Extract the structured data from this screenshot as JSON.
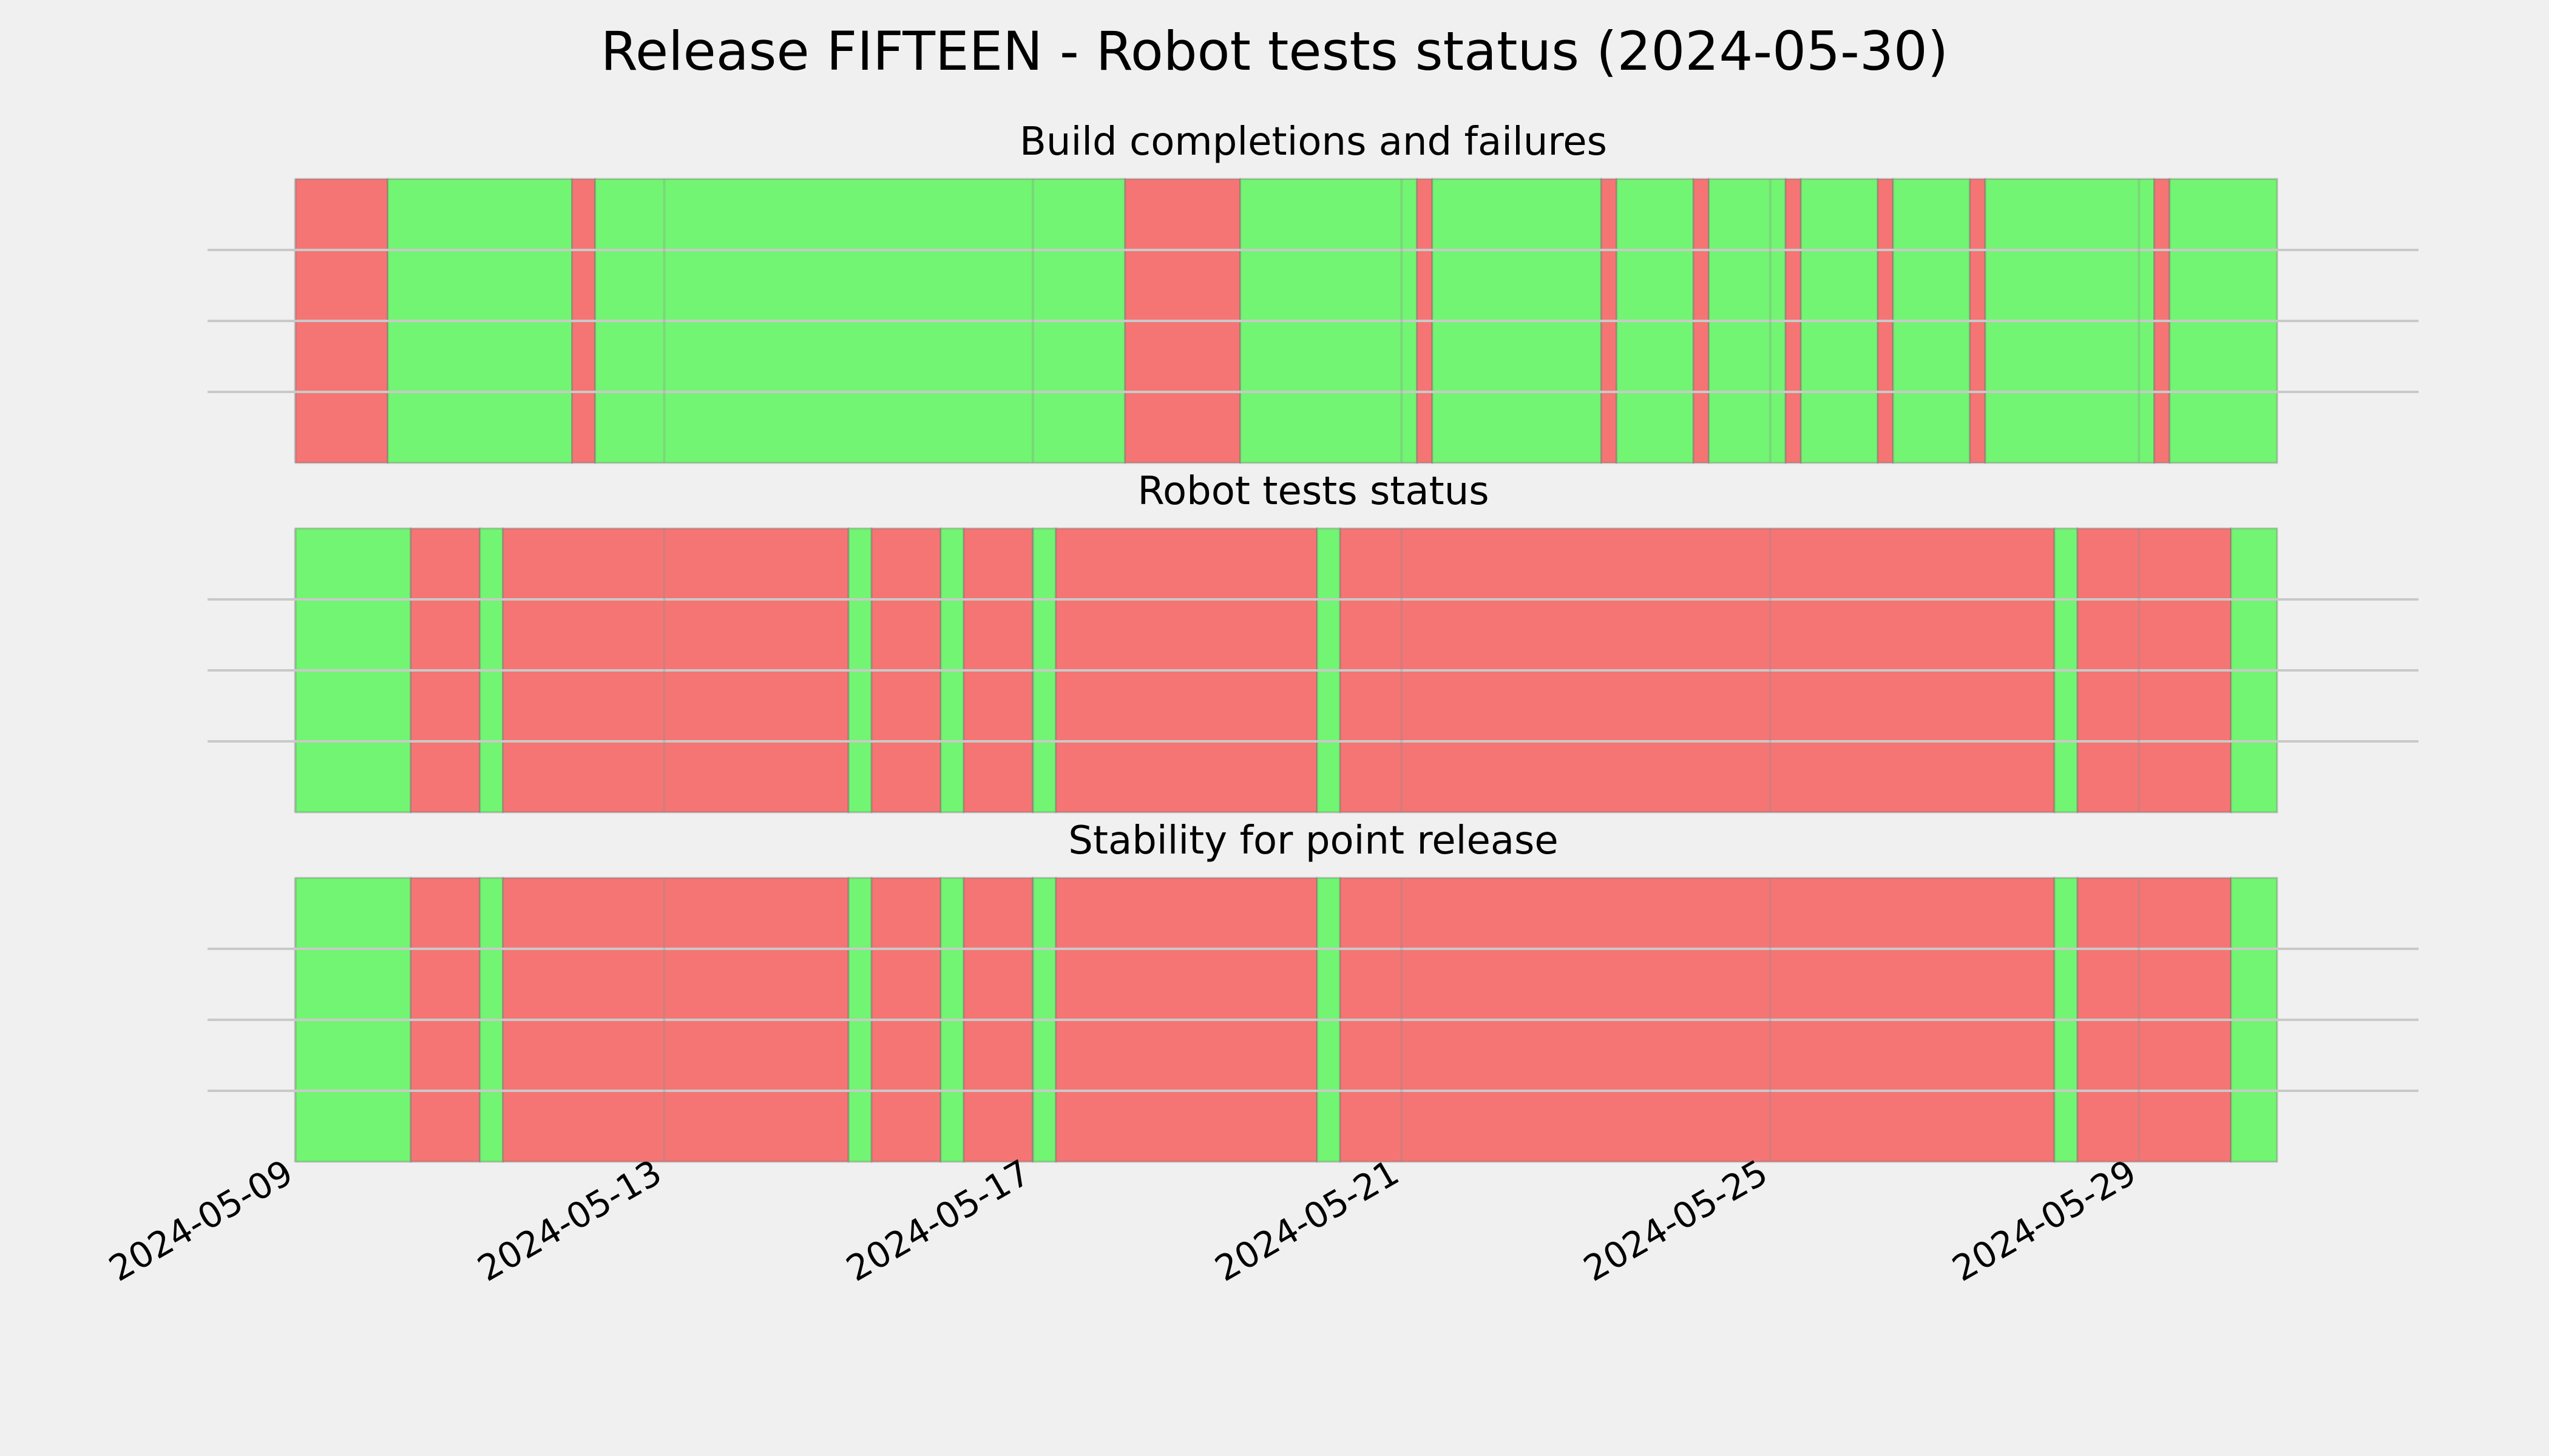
{
  "chart_data": {
    "title": "Release FIFTEEN - Robot tests status (2024-05-30)",
    "type": "timeline",
    "x_axis": {
      "type": "date",
      "range": [
        "2024-05-09",
        "2024-05-31"
      ],
      "ticks": [
        "2024-05-09",
        "2024-05-13",
        "2024-05-17",
        "2024-05-21",
        "2024-05-25",
        "2024-05-29"
      ]
    },
    "colors": {
      "pass": "#72f572",
      "fail": "#f57575"
    },
    "grid": true,
    "panels": [
      {
        "title": "Build completions and failures",
        "segments": [
          {
            "start": "2024-05-09 00:00",
            "status": "fail"
          },
          {
            "start": "2024-05-10 00:00",
            "status": "pass"
          },
          {
            "start": "2024-05-12 00:00",
            "status": "fail"
          },
          {
            "start": "2024-05-12 06:00",
            "status": "pass"
          },
          {
            "start": "2024-05-18 00:00",
            "status": "fail"
          },
          {
            "start": "2024-05-19 06:00",
            "status": "pass"
          },
          {
            "start": "2024-05-21 04:00",
            "status": "fail"
          },
          {
            "start": "2024-05-21 08:00",
            "status": "pass"
          },
          {
            "start": "2024-05-23 04:00",
            "status": "fail"
          },
          {
            "start": "2024-05-23 08:00",
            "status": "pass"
          },
          {
            "start": "2024-05-24 04:00",
            "status": "fail"
          },
          {
            "start": "2024-05-24 08:00",
            "status": "pass"
          },
          {
            "start": "2024-05-25 04:00",
            "status": "fail"
          },
          {
            "start": "2024-05-25 08:00",
            "status": "pass"
          },
          {
            "start": "2024-05-26 04:00",
            "status": "fail"
          },
          {
            "start": "2024-05-26 08:00",
            "status": "pass"
          },
          {
            "start": "2024-05-27 04:00",
            "status": "fail"
          },
          {
            "start": "2024-05-27 08:00",
            "status": "pass"
          },
          {
            "start": "2024-05-29 04:00",
            "status": "fail"
          },
          {
            "start": "2024-05-29 08:00",
            "status": "pass"
          },
          {
            "end": "2024-05-30 12:00"
          }
        ]
      },
      {
        "title": "Robot tests status",
        "segments": [
          {
            "start": "2024-05-09 00:00",
            "status": "pass"
          },
          {
            "start": "2024-05-10 06:00",
            "status": "fail"
          },
          {
            "start": "2024-05-11 00:00",
            "status": "pass"
          },
          {
            "start": "2024-05-11 06:00",
            "status": "fail"
          },
          {
            "start": "2024-05-15 00:00",
            "status": "pass"
          },
          {
            "start": "2024-05-15 06:00",
            "status": "fail"
          },
          {
            "start": "2024-05-16 00:00",
            "status": "pass"
          },
          {
            "start": "2024-05-16 06:00",
            "status": "fail"
          },
          {
            "start": "2024-05-17 00:00",
            "status": "pass"
          },
          {
            "start": "2024-05-17 06:00",
            "status": "fail"
          },
          {
            "start": "2024-05-20 02:00",
            "status": "pass"
          },
          {
            "start": "2024-05-20 08:00",
            "status": "fail"
          },
          {
            "start": "2024-05-28 02:00",
            "status": "pass"
          },
          {
            "start": "2024-05-28 08:00",
            "status": "fail"
          },
          {
            "start": "2024-05-30 00:00",
            "status": "pass"
          },
          {
            "end": "2024-05-30 12:00"
          }
        ]
      },
      {
        "title": "Stability for point release",
        "segments": [
          {
            "start": "2024-05-09 00:00",
            "status": "pass"
          },
          {
            "start": "2024-05-10 06:00",
            "status": "fail"
          },
          {
            "start": "2024-05-11 00:00",
            "status": "pass"
          },
          {
            "start": "2024-05-11 06:00",
            "status": "fail"
          },
          {
            "start": "2024-05-15 00:00",
            "status": "pass"
          },
          {
            "start": "2024-05-15 06:00",
            "status": "fail"
          },
          {
            "start": "2024-05-16 00:00",
            "status": "pass"
          },
          {
            "start": "2024-05-16 06:00",
            "status": "fail"
          },
          {
            "start": "2024-05-17 00:00",
            "status": "pass"
          },
          {
            "start": "2024-05-17 06:00",
            "status": "fail"
          },
          {
            "start": "2024-05-20 02:00",
            "status": "pass"
          },
          {
            "start": "2024-05-20 08:00",
            "status": "fail"
          },
          {
            "start": "2024-05-28 02:00",
            "status": "pass"
          },
          {
            "start": "2024-05-28 08:00",
            "status": "fail"
          },
          {
            "start": "2024-05-30 00:00",
            "status": "pass"
          },
          {
            "end": "2024-05-30 12:00"
          }
        ]
      }
    ]
  }
}
